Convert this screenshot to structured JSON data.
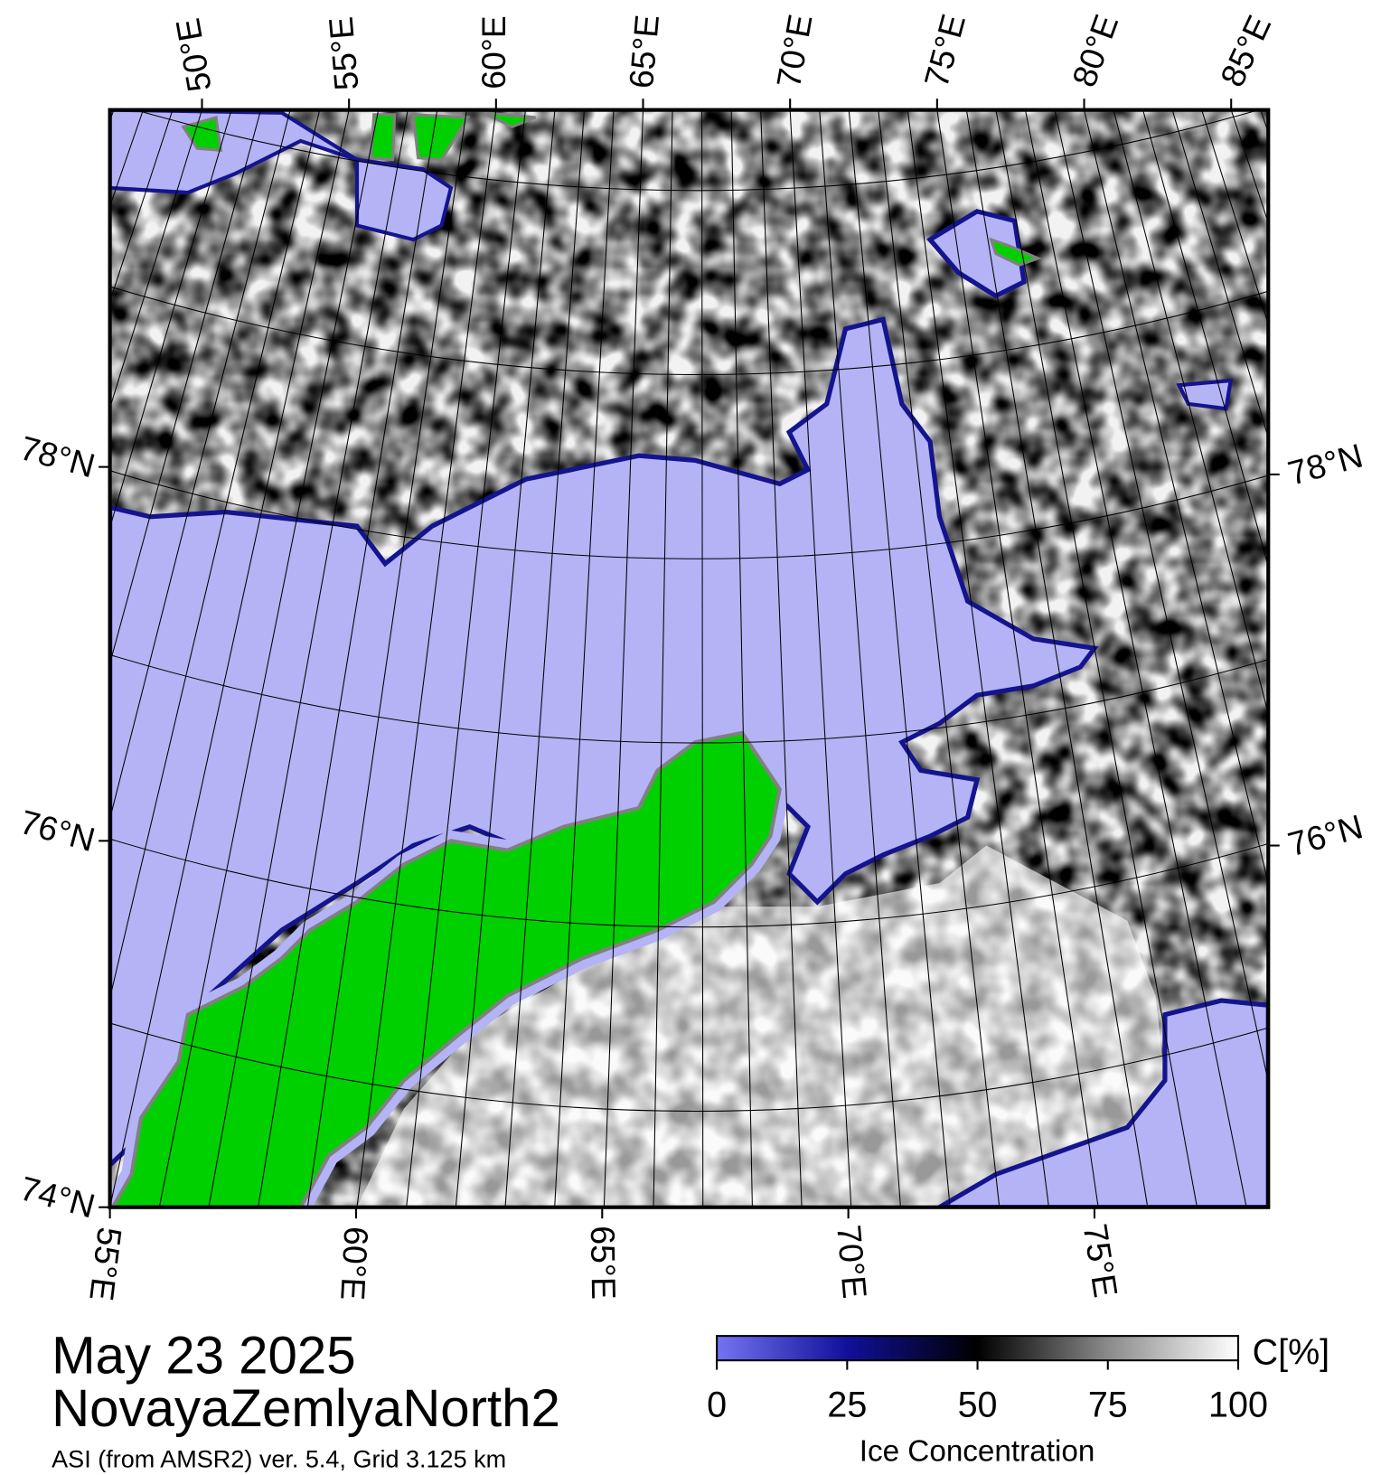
{
  "map": {
    "top_lon_labels": [
      "50°E",
      "55°E",
      "60°E",
      "65°E",
      "70°E",
      "75°E",
      "80°E",
      "85°E"
    ],
    "bottom_lon_labels": [
      "55°E",
      "60°E",
      "65°E",
      "70°E",
      "75°E"
    ],
    "left_lat_labels": [
      "78°N",
      "76°N",
      "74°N"
    ],
    "right_lat_labels": [
      "78°N",
      "76°N"
    ]
  },
  "caption": {
    "date": "May 23 2025",
    "region": "NovayaZemlyaNorth2",
    "source": "ASI (from AMSR2) ver. 5.4,  Grid 3.125 km"
  },
  "colorbar": {
    "unit": "C[%]",
    "label": "Ice Concentration",
    "ticks": [
      0,
      25,
      50,
      75,
      100
    ]
  }
}
